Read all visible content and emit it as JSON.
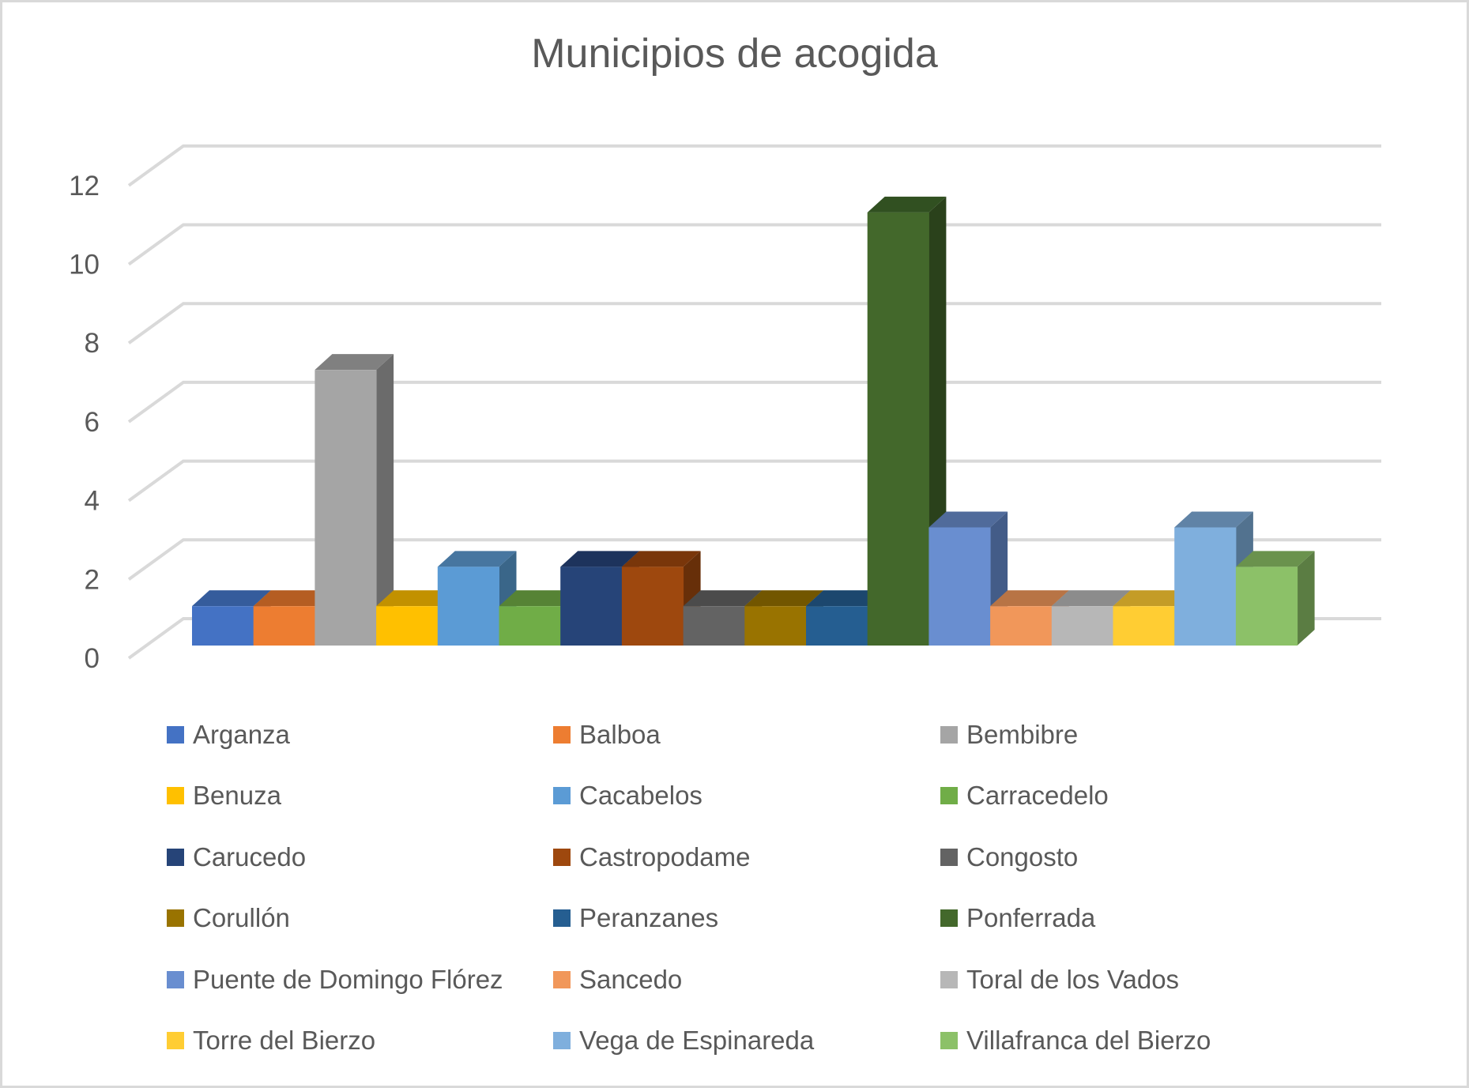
{
  "chart_data": {
    "type": "bar",
    "style": "3d-clustered-column",
    "title": "Municipios de acogida",
    "xlabel": "",
    "ylabel": "",
    "ylim": [
      0,
      12
    ],
    "yticks": [
      0,
      2,
      4,
      6,
      8,
      10,
      12
    ],
    "grid": true,
    "legend_position": "bottom",
    "categories": [
      ""
    ],
    "series": [
      {
        "name": "Arganza",
        "values": [
          1
        ],
        "color": "#4472C4",
        "top": "#355C9C",
        "side": "#2E5090"
      },
      {
        "name": "Balboa",
        "values": [
          1
        ],
        "color": "#ED7D31",
        "top": "#B55D22",
        "side": "#A9541D"
      },
      {
        "name": "Bembibre",
        "values": [
          7
        ],
        "color": "#A5A5A5",
        "top": "#808080",
        "side": "#6B6B6B"
      },
      {
        "name": "Benuza",
        "values": [
          1
        ],
        "color": "#FFC000",
        "top": "#C29100",
        "side": "#B38600"
      },
      {
        "name": "Cacabelos",
        "values": [
          2
        ],
        "color": "#5B9BD5",
        "top": "#4776A0",
        "side": "#3A6689"
      },
      {
        "name": "Carracedelo",
        "values": [
          1
        ],
        "color": "#70AD47",
        "top": "#568335",
        "side": "#4E7830"
      },
      {
        "name": "Carucedo",
        "values": [
          2
        ],
        "color": "#264478",
        "top": "#1D335C",
        "side": "#182B4E"
      },
      {
        "name": "Castropodame",
        "values": [
          2
        ],
        "color": "#9E480E",
        "top": "#79360A",
        "side": "#672F09"
      },
      {
        "name": "Congosto",
        "values": [
          1
        ],
        "color": "#636363",
        "top": "#4B4B4B",
        "side": "#404040"
      },
      {
        "name": "Corullón",
        "values": [
          1
        ],
        "color": "#997300",
        "top": "#725600",
        "side": "#634A00"
      },
      {
        "name": "Peranzanes",
        "values": [
          1
        ],
        "color": "#255E91",
        "top": "#1C476E",
        "side": "#173C5E"
      },
      {
        "name": "Ponferrada",
        "values": [
          11
        ],
        "color": "#43682B",
        "top": "#315021",
        "side": "#2A411B"
      },
      {
        "name": "Puente de Domingo Flórez",
        "values": [
          3
        ],
        "color": "#698ED0",
        "top": "#506B9B",
        "side": "#435C88"
      },
      {
        "name": "Sancedo",
        "values": [
          1
        ],
        "color": "#F1975A",
        "top": "#B87445",
        "side": "#A5663C"
      },
      {
        "name": "Toral de los Vados",
        "values": [
          1
        ],
        "color": "#B7B7B7",
        "top": "#8C8C8C",
        "side": "#7D7D7D"
      },
      {
        "name": "Torre del Bierzo",
        "values": [
          1
        ],
        "color": "#FFCD33",
        "top": "#C49C27",
        "side": "#B08C22"
      },
      {
        "name": "Vega de Espinareda",
        "values": [
          3
        ],
        "color": "#7FAFDD",
        "top": "#6083A6",
        "side": "#52728F"
      },
      {
        "name": "Villafranca del Bierzo",
        "values": [
          2
        ],
        "color": "#8CC168",
        "top": "#6A924D",
        "side": "#5B7D43"
      }
    ]
  },
  "gridline_color": "#D9D9D9",
  "text_color": "#595959"
}
